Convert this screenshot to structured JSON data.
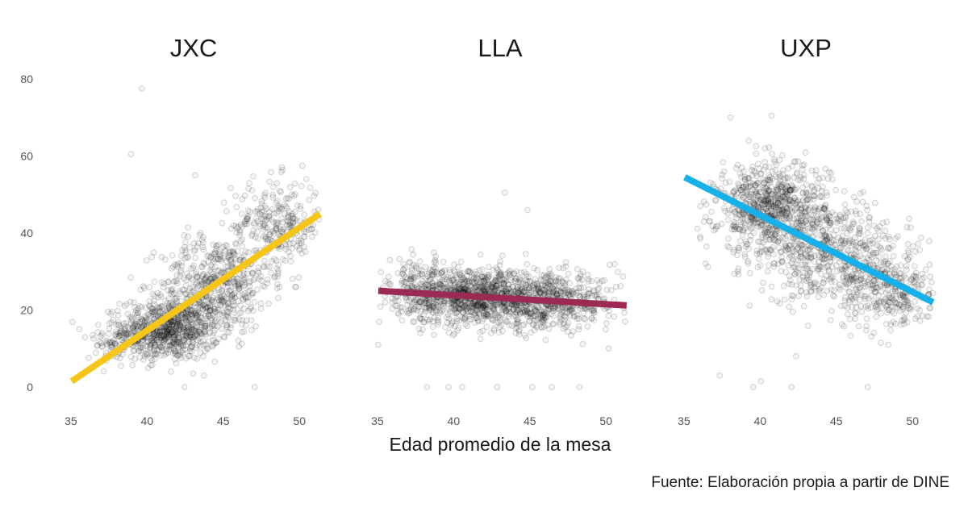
{
  "chart_data": {
    "type": "scatter",
    "xlabel": "Edad promedio de la mesa",
    "caption": "Fuente: Elaboración propia a partir de DINE",
    "xlim": [
      34,
      52
    ],
    "ylim": [
      -8,
      82
    ],
    "x_ticks": [
      35,
      40,
      45,
      50
    ],
    "y_ticks": [
      0,
      20,
      40,
      60,
      80
    ],
    "grid": false,
    "facets": [
      {
        "title": "JXC",
        "trend_color": "#F5C518",
        "trend": {
          "x": [
            35,
            51.3
          ],
          "y": [
            1.5,
            45
          ]
        },
        "cloud": {
          "cx": 42.5,
          "cy": 17,
          "n": 1600,
          "blobs": [
            {
              "x": 41.5,
              "y": 15,
              "sx": 1.6,
              "sy": 4,
              "w": 0.45
            },
            {
              "x": 44.5,
              "y": 27,
              "sx": 1.8,
              "sy": 6,
              "w": 0.3
            },
            {
              "x": 48.5,
              "y": 42,
              "sx": 1.5,
              "sy": 6,
              "w": 0.18
            },
            {
              "x": 38.5,
              "y": 12,
              "sx": 1.2,
              "sy": 3,
              "w": 0.07
            }
          ]
        },
        "outliers": [
          [
            39.6,
            77.5
          ],
          [
            38.9,
            60.5
          ],
          [
            43.1,
            55
          ],
          [
            42.4,
            0
          ],
          [
            47.0,
            0
          ],
          [
            50.4,
            54
          ],
          [
            49.7,
            26
          ],
          [
            35.5,
            15
          ]
        ]
      },
      {
        "title": "LLA",
        "trend_color": "#9B2B55",
        "trend": {
          "x": [
            35,
            51.3
          ],
          "y": [
            25,
            21.2
          ]
        },
        "cloud": {
          "cx": 42,
          "cy": 23,
          "n": 1600,
          "blobs": [
            {
              "x": 41.5,
              "y": 23.5,
              "sx": 2.4,
              "sy": 3.8,
              "w": 0.6
            },
            {
              "x": 46.5,
              "y": 22,
              "sx": 2.2,
              "sy": 3.5,
              "w": 0.3
            },
            {
              "x": 37.5,
              "y": 26,
              "sx": 1.3,
              "sy": 3.5,
              "w": 0.1
            }
          ]
        },
        "outliers": [
          [
            38.2,
            0
          ],
          [
            39.6,
            0
          ],
          [
            40.5,
            0
          ],
          [
            42.8,
            0
          ],
          [
            45.1,
            0
          ],
          [
            46.4,
            0
          ],
          [
            48.2,
            0
          ],
          [
            43.3,
            50.5
          ],
          [
            44.8,
            46
          ],
          [
            35.0,
            11
          ],
          [
            51.2,
            17
          ]
        ]
      },
      {
        "title": "UXP",
        "trend_color": "#16B1E8",
        "trend": {
          "x": [
            35,
            51.3
          ],
          "y": [
            54.5,
            22
          ]
        },
        "cloud": {
          "cx": 42,
          "cy": 42,
          "n": 1600,
          "blobs": [
            {
              "x": 40.8,
              "y": 46,
              "sx": 1.8,
              "sy": 6,
              "w": 0.5
            },
            {
              "x": 45,
              "y": 34,
              "sx": 2.2,
              "sy": 6.5,
              "w": 0.32
            },
            {
              "x": 48.5,
              "y": 25,
              "sx": 1.5,
              "sy": 5,
              "w": 0.18
            }
          ]
        },
        "outliers": [
          [
            40.7,
            70.5
          ],
          [
            38.0,
            70
          ],
          [
            39.5,
            0
          ],
          [
            40.0,
            1.5
          ],
          [
            42.0,
            0
          ],
          [
            47.0,
            0
          ],
          [
            37.3,
            3
          ],
          [
            42.3,
            8
          ],
          [
            51.0,
            24
          ],
          [
            36.0,
            39
          ]
        ]
      }
    ]
  }
}
